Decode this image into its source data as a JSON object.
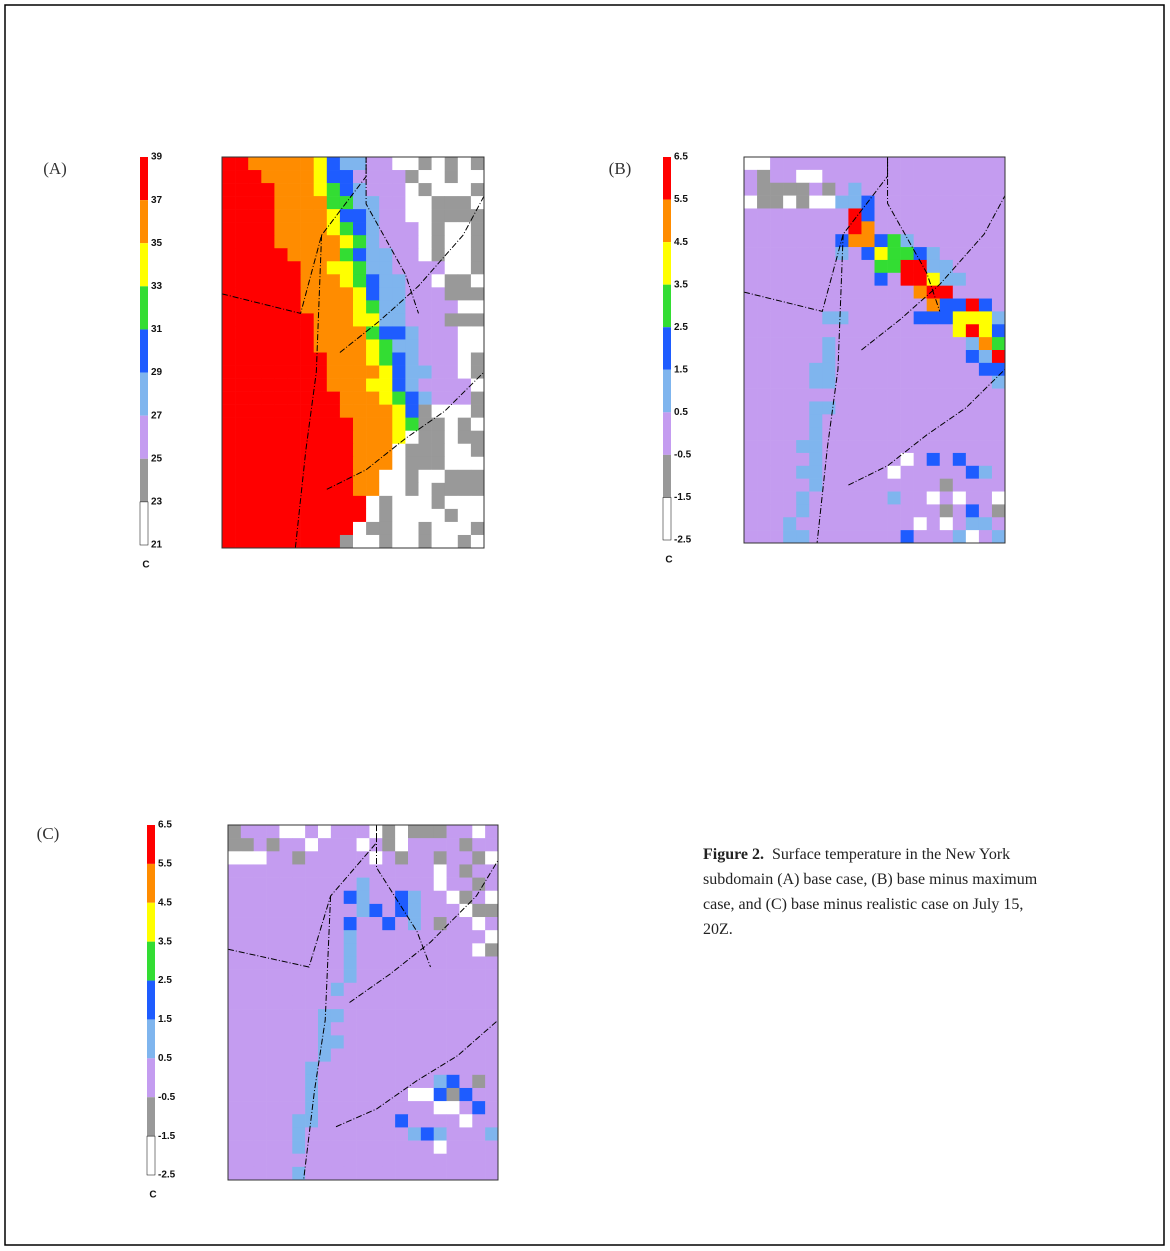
{
  "panels": [
    {
      "label": "(A)",
      "unit": "C",
      "ticks": [
        "39",
        "37",
        "35",
        "33",
        "31",
        "29",
        "27",
        "25",
        "23",
        "21"
      ]
    },
    {
      "label": "(B)",
      "unit": "C",
      "ticks": [
        "6.5",
        "5.5",
        "4.5",
        "3.5",
        "2.5",
        "1.5",
        "0.5",
        "-0.5",
        "-1.5",
        "-2.5"
      ]
    },
    {
      "label": "(C)",
      "unit": "C",
      "ticks": [
        "6.5",
        "5.5",
        "4.5",
        "3.5",
        "2.5",
        "1.5",
        "0.5",
        "-0.5",
        "-1.5",
        "-2.5"
      ]
    }
  ],
  "colors": [
    "#ff0000",
    "#ff8c00",
    "#ffff00",
    "#33dd33",
    "#1e5cff",
    "#7fb5ee",
    "#c49cf0",
    "#999999",
    "#ffffff"
  ],
  "caption": {
    "lead": "Figure 2.",
    "text": "Surface temperature in the New York subdomain (A) base case, (B) base minus maximum case, and (C) base minus realistic case on July 15, 20Z."
  }
}
